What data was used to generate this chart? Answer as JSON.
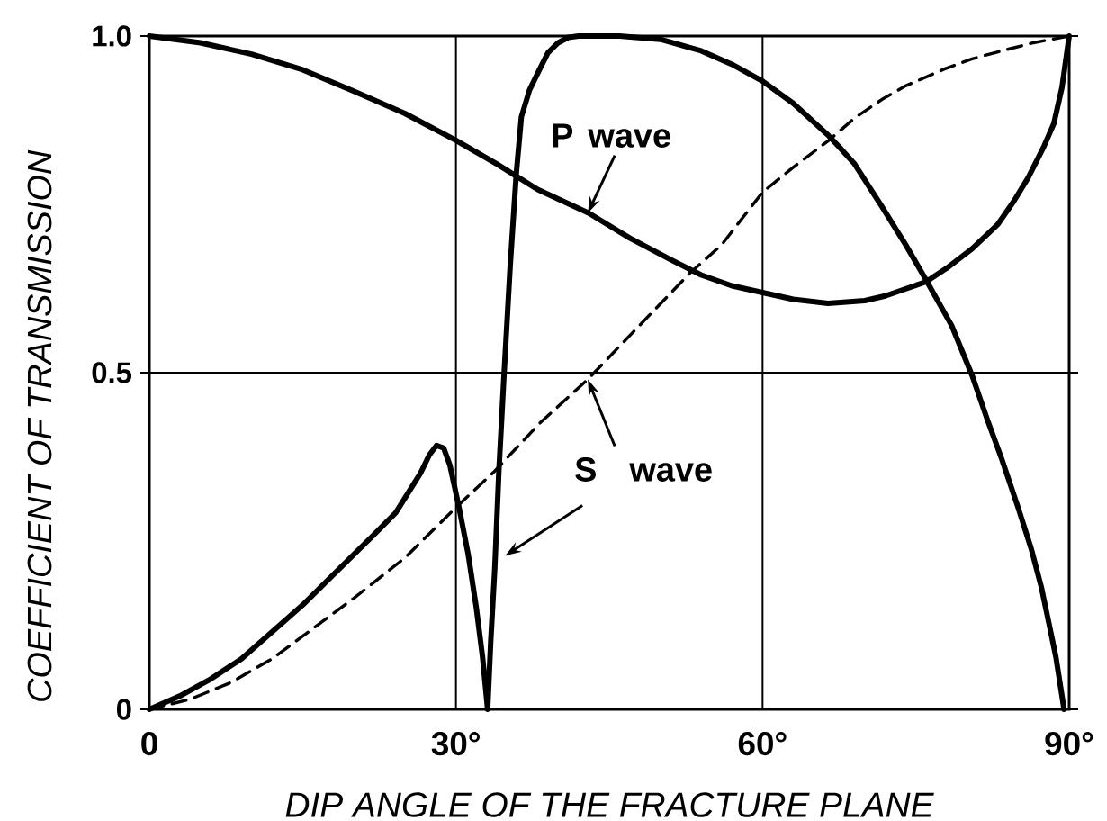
{
  "chart_data": {
    "type": "line",
    "xlabel": "DIP ANGLE OF THE FRACTURE PLANE",
    "ylabel": "COEFFICIENT OF TRANSMISSION",
    "xlim": [
      0,
      90
    ],
    "ylim": [
      0,
      1
    ],
    "xticks": [
      0,
      {
        "value": 30,
        "label": "30°"
      },
      {
        "value": 60,
        "label": "60°"
      },
      {
        "value": 90,
        "label": "90°"
      }
    ],
    "yticks": [
      0,
      0.5,
      {
        "value": 1,
        "label": "1.0"
      }
    ],
    "grid": true,
    "series": [
      {
        "color": "#000000",
        "line_style": "solid",
        "x": [
          0,
          5,
          10,
          15,
          20,
          25,
          30,
          34,
          38,
          43,
          47,
          51,
          54,
          57,
          60,
          63,
          66.4,
          70,
          72,
          76,
          78,
          80.5,
          83,
          84.6,
          86,
          87.5,
          88.5,
          89.3,
          90
        ],
        "values": [
          1.0,
          0.99,
          0.973,
          0.95,
          0.918,
          0.885,
          0.845,
          0.81,
          0.772,
          0.737,
          0.7,
          0.668,
          0.645,
          0.629,
          0.619,
          0.609,
          0.603,
          0.607,
          0.614,
          0.635,
          0.655,
          0.684,
          0.72,
          0.755,
          0.79,
          0.835,
          0.87,
          0.924,
          1.0
        ]
      },
      {
        "color": "#000000",
        "line_style": "solid",
        "x": [
          0,
          3,
          6,
          9,
          12,
          15,
          18,
          22,
          24.1,
          26.5,
          27.4,
          28.1,
          28.8,
          29.4,
          30.3,
          31.2,
          32,
          32.6,
          33.1,
          33.4,
          33.8,
          34.2,
          34.7,
          35.3,
          35.9,
          36.4,
          37.2,
          38.2,
          39,
          40,
          41,
          42,
          46,
          50,
          54,
          57,
          60,
          63,
          66.4,
          67.7,
          69,
          71.7,
          74,
          76.1,
          78.5,
          80.5,
          82,
          83.4,
          85,
          86.3,
          87.3,
          88.1,
          88.7,
          89.5
        ],
        "values": [
          0,
          0.02,
          0.045,
          0.075,
          0.115,
          0.155,
          0.2,
          0.26,
          0.292,
          0.35,
          0.378,
          0.392,
          0.388,
          0.363,
          0.3,
          0.23,
          0.15,
          0.078,
          0,
          0.1,
          0.21,
          0.354,
          0.496,
          0.657,
          0.795,
          0.88,
          0.92,
          0.951,
          0.975,
          0.99,
          0.998,
          1.0,
          1.0,
          0.995,
          0.978,
          0.958,
          0.933,
          0.9,
          0.853,
          0.832,
          0.81,
          0.746,
          0.69,
          0.635,
          0.57,
          0.496,
          0.43,
          0.372,
          0.3,
          0.238,
          0.18,
          0.122,
          0.078,
          0
        ]
      },
      {
        "color": "#000000",
        "line_style": "dashed",
        "x": [
          0,
          4,
          8,
          12,
          16,
          20,
          25,
          30,
          33.8,
          38.2,
          42.9,
          47,
          52.9,
          56,
          60,
          63,
          66.4,
          69,
          71.7,
          74,
          77.8,
          80.5,
          83.4,
          86.5,
          90
        ],
        "values": [
          0,
          0.015,
          0.04,
          0.075,
          0.12,
          0.165,
          0.225,
          0.3,
          0.354,
          0.425,
          0.49,
          0.555,
          0.648,
          0.69,
          0.768,
          0.805,
          0.844,
          0.878,
          0.906,
          0.926,
          0.951,
          0.966,
          0.978,
          0.99,
          1.0
        ]
      }
    ],
    "annotations": [
      {
        "text": "P wave",
        "x": 42.9,
        "y": 0.737
      },
      {
        "text": "S wave",
        "x": 42.9,
        "y": 0.49
      }
    ]
  }
}
